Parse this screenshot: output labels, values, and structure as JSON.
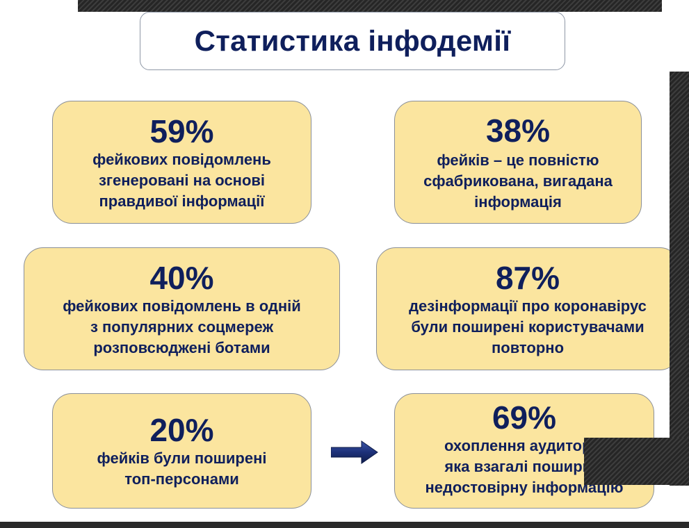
{
  "title": "Статистика інфодемії",
  "cards": [
    {
      "percent": "59%",
      "lines": [
        "фейкових повідомлень",
        "згенеровані на основі",
        "правдивої інформації"
      ]
    },
    {
      "percent": "38%",
      "lines": [
        "фейків – це повністю",
        "сфабрикована, вигадана",
        "інформація"
      ]
    },
    {
      "percent": "40%",
      "lines": [
        "фейкових повідомлень в одній",
        "з популярних соцмереж",
        "розповсюджені ботами"
      ]
    },
    {
      "percent": "87%",
      "lines": [
        "дезінформації про коронавірус",
        "були поширені користувачами",
        "повторно"
      ]
    },
    {
      "percent": "20%",
      "lines": [
        "фейків були поширені",
        "топ-персонами"
      ]
    },
    {
      "percent": "69%",
      "lines": [
        "охоплення аудиторії,",
        "яка взагалі поширює",
        "недостовірну інформацію"
      ]
    }
  ],
  "colors": {
    "text": "#0f1f5c",
    "card_fill": "#fbe59f",
    "card_border": "#8a8f98",
    "arrow": "#1d3178"
  },
  "icons": {
    "arrow": "right-arrow-icon"
  }
}
